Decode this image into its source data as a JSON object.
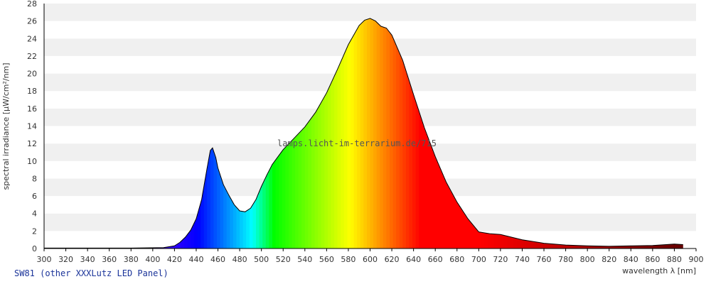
{
  "chart_data": {
    "type": "area",
    "xlabel": "wavelength λ [nm]",
    "ylabel": "spectral irradiance [µW/cm²/nm]",
    "xlim": [
      300,
      900
    ],
    "ylim": [
      0,
      28
    ],
    "x_ticks": [
      300,
      320,
      340,
      360,
      380,
      400,
      420,
      440,
      460,
      480,
      500,
      520,
      540,
      560,
      580,
      600,
      620,
      640,
      660,
      680,
      700,
      720,
      740,
      760,
      780,
      800,
      820,
      840,
      860,
      880,
      900
    ],
    "y_ticks": [
      0,
      2,
      4,
      6,
      8,
      10,
      12,
      14,
      16,
      18,
      20,
      22,
      24,
      26,
      28
    ],
    "grid": "horizontal-bands",
    "series": [
      {
        "x": [
          300,
          380,
          410,
          420,
          425,
          430,
          435,
          440,
          445,
          450,
          453,
          455,
          458,
          460,
          465,
          470,
          475,
          480,
          485,
          490,
          495,
          500,
          505,
          510,
          520,
          530,
          540,
          550,
          560,
          570,
          580,
          590,
          595,
          600,
          605,
          610,
          615,
          620,
          630,
          640,
          650,
          660,
          670,
          680,
          690,
          700,
          710,
          720,
          730,
          740,
          760,
          780,
          800,
          820,
          840,
          860,
          880,
          888
        ],
        "y": [
          0.05,
          0.05,
          0.1,
          0.3,
          0.7,
          1.3,
          2.1,
          3.4,
          5.6,
          9.2,
          11.2,
          11.5,
          10.4,
          9.2,
          7.3,
          6.1,
          5.0,
          4.3,
          4.2,
          4.6,
          5.6,
          7.1,
          8.4,
          9.6,
          11.3,
          12.6,
          13.9,
          15.6,
          17.8,
          20.5,
          23.3,
          25.5,
          26.1,
          26.3,
          26.0,
          25.4,
          25.2,
          24.4,
          21.5,
          17.6,
          13.8,
          10.5,
          7.6,
          5.3,
          3.4,
          1.9,
          1.7,
          1.6,
          1.3,
          1.0,
          0.6,
          0.4,
          0.3,
          0.25,
          0.3,
          0.35,
          0.5,
          0.45
        ]
      }
    ],
    "spectrum_fill": "wavelength-colored",
    "watermark": "lamps.licht-im-terrarium.de/715",
    "caption": "SW81 (other XXXLutz LED Panel)"
  },
  "colors": {
    "band_light": "#f0f0f0",
    "band_white": "#ffffff",
    "caption": "#1a3399",
    "outline": "#000000"
  }
}
